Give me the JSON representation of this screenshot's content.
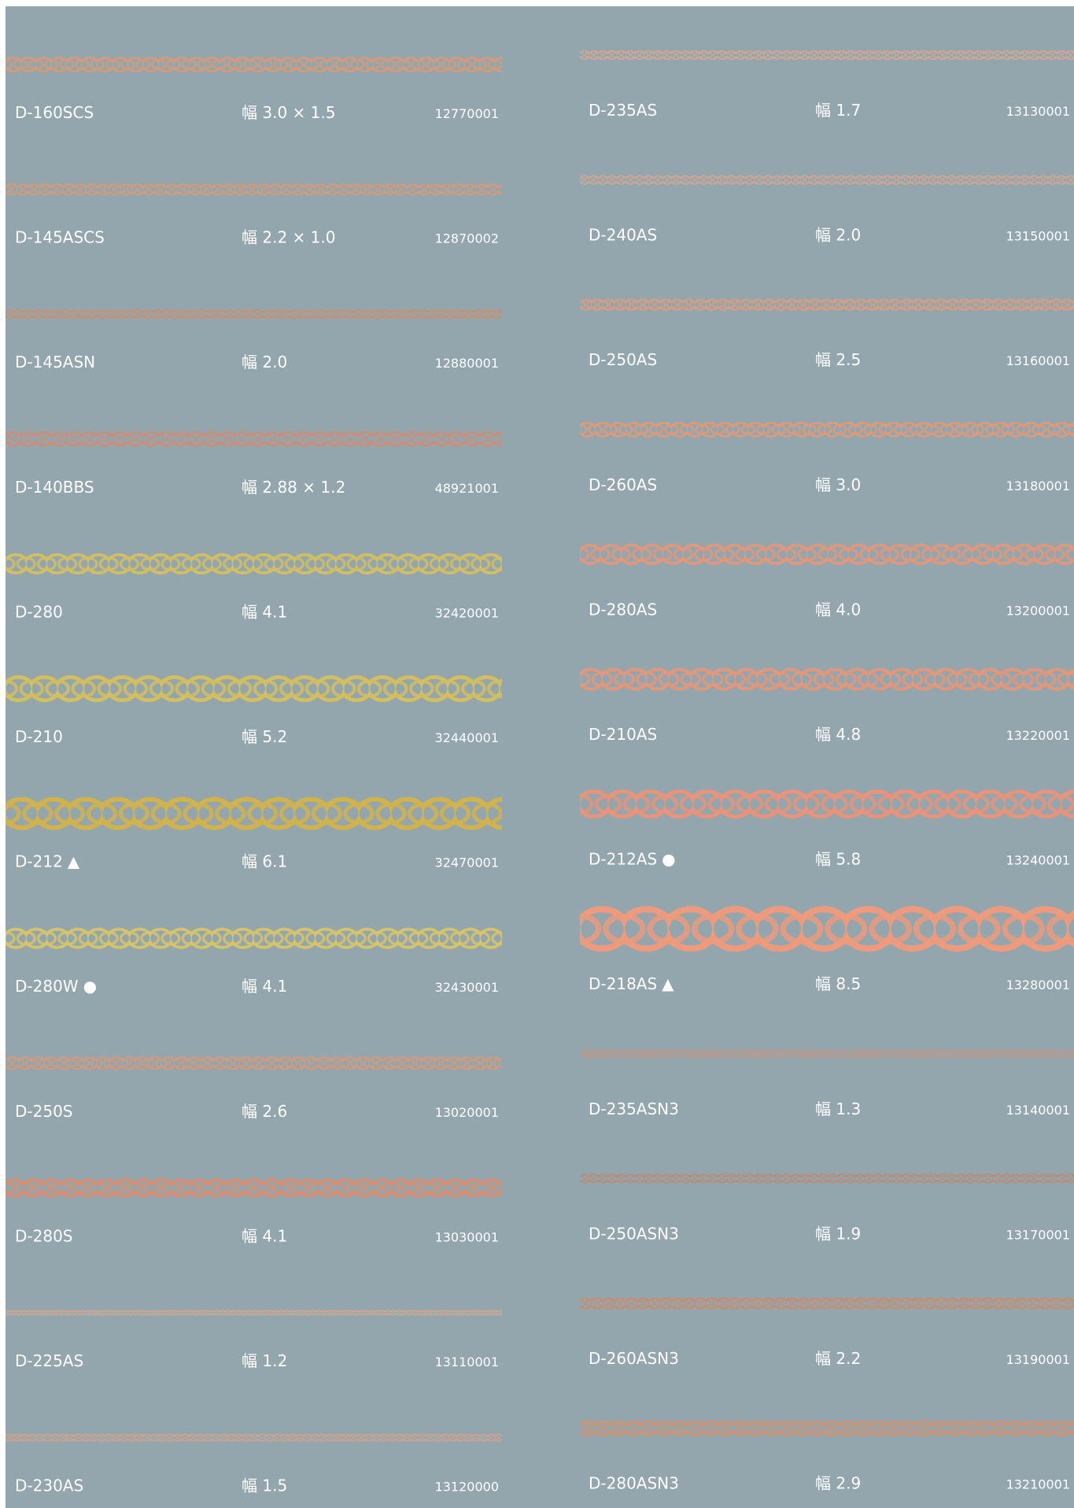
{
  "columns": [
    {
      "items": [
        {
          "code": "D-160SCS",
          "width": "幅 3.0 × 1.5",
          "number": "12770001",
          "color": "#d59a78"
        },
        {
          "code": "D-145ASCS",
          "width": "幅 2.2 × 1.0",
          "number": "12870002",
          "color": "#d59a78"
        },
        {
          "code": "D-145ASN",
          "width": "幅 2.0",
          "number": "12880001",
          "color": "#c98f6c"
        },
        {
          "code": "D-140BBS",
          "width": "幅 2.88 × 1.2",
          "number": "48921001",
          "color": "#c98f78"
        },
        {
          "code": "D-280",
          "width": "幅 4.1",
          "number": "32420001",
          "color": "#d3bf62"
        },
        {
          "code": "D-210",
          "width": "幅 5.2",
          "number": "32440001",
          "color": "#d3bf5e"
        },
        {
          "code": "D-212",
          "mark": "▲",
          "width": "幅 6.1",
          "number": "32470001",
          "color": "#d2b24a"
        },
        {
          "code": "D-280W",
          "mark": "●",
          "width": "幅 4.1",
          "number": "32430001",
          "color": "#d7c468"
        },
        {
          "code": "D-250S",
          "width": "幅 2.6",
          "number": "13020001",
          "color": "#d29a7a"
        },
        {
          "code": "D-280S",
          "width": "幅 4.1",
          "number": "13030001",
          "color": "#de8d6c"
        },
        {
          "code": "D-225AS",
          "width": "幅 1.2",
          "number": "13110001",
          "color": "#d3a892"
        },
        {
          "code": "D-230AS",
          "width": "幅 1.5",
          "number": "13120000",
          "color": "#d6a28a"
        }
      ]
    },
    {
      "items": [
        {
          "code": "D-235AS",
          "width": "幅 1.7",
          "number": "13130001",
          "color": "#d6a892"
        },
        {
          "code": "D-240AS",
          "width": "幅 2.0",
          "number": "13150001",
          "color": "#d3a690"
        },
        {
          "code": "D-250AS",
          "width": "幅 2.5",
          "number": "13160001",
          "color": "#df9c7c"
        },
        {
          "code": "D-260AS",
          "width": "幅 3.0",
          "number": "13180001",
          "color": "#df9a78"
        },
        {
          "code": "D-280AS",
          "width": "幅 4.0",
          "number": "13200001",
          "color": "#e2977a"
        },
        {
          "code": "D-210AS",
          "width": "幅 4.8",
          "number": "13220001",
          "color": "#e3977a"
        },
        {
          "code": "D-212AS",
          "mark": "●",
          "width": "幅 5.8",
          "number": "13240001",
          "color": "#e8937a"
        },
        {
          "code": "D-218AS",
          "mark": "▲",
          "width": "幅 8.5",
          "number": "13280001",
          "color": "#ee9a7c"
        },
        {
          "code": "D-235ASN3",
          "width": "幅 1.3",
          "number": "13140001",
          "color": "#c7957e"
        },
        {
          "code": "D-250ASN3",
          "width": "幅 1.9",
          "number": "13170001",
          "color": "#b98c72"
        },
        {
          "code": "D-260ASN3",
          "width": "幅 2.2",
          "number": "13190001",
          "color": "#c98c6c"
        },
        {
          "code": "D-280ASN3",
          "width": "幅 2.9",
          "number": "13210001",
          "color": "#d39270"
        }
      ]
    }
  ]
}
